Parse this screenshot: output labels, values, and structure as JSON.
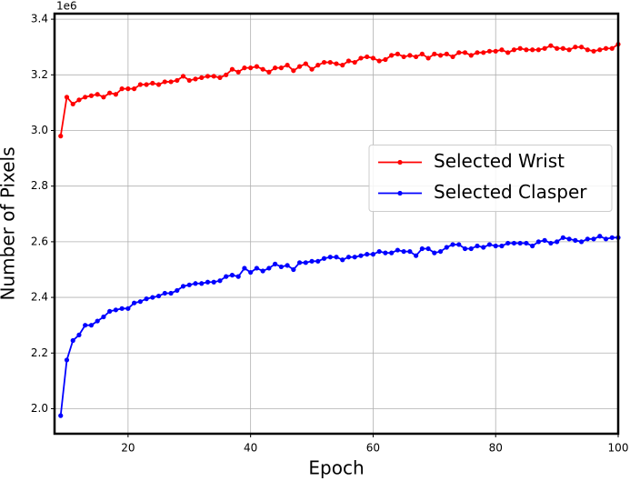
{
  "chart_data": {
    "type": "line",
    "x_label": "Epoch",
    "y_label": "Number of Pixels",
    "y_offset_label": "1e6",
    "x": [
      9,
      10,
      11,
      12,
      13,
      14,
      15,
      16,
      17,
      18,
      19,
      20,
      21,
      22,
      23,
      24,
      25,
      26,
      27,
      28,
      29,
      30,
      31,
      32,
      33,
      34,
      35,
      36,
      37,
      38,
      39,
      40,
      41,
      42,
      43,
      44,
      45,
      46,
      47,
      48,
      49,
      50,
      51,
      52,
      53,
      54,
      55,
      56,
      57,
      58,
      59,
      60,
      61,
      62,
      63,
      64,
      65,
      66,
      67,
      68,
      69,
      70,
      71,
      72,
      73,
      74,
      75,
      76,
      77,
      78,
      79,
      80,
      81,
      82,
      83,
      84,
      85,
      86,
      87,
      88,
      89,
      90,
      91,
      92,
      93,
      94,
      95,
      96,
      97,
      98,
      99,
      100
    ],
    "series": [
      {
        "name": "Selected Wrist",
        "color": "#ff0000",
        "values": [
          2.98,
          3.12,
          3.095,
          3.11,
          3.12,
          3.125,
          3.13,
          3.12,
          3.135,
          3.13,
          3.15,
          3.15,
          3.15,
          3.165,
          3.165,
          3.17,
          3.165,
          3.175,
          3.175,
          3.18,
          3.195,
          3.18,
          3.185,
          3.19,
          3.195,
          3.195,
          3.19,
          3.2,
          3.22,
          3.21,
          3.225,
          3.225,
          3.23,
          3.22,
          3.21,
          3.225,
          3.225,
          3.235,
          3.215,
          3.23,
          3.24,
          3.22,
          3.235,
          3.245,
          3.245,
          3.24,
          3.235,
          3.25,
          3.245,
          3.26,
          3.265,
          3.26,
          3.25,
          3.255,
          3.27,
          3.275,
          3.265,
          3.27,
          3.265,
          3.275,
          3.26,
          3.275,
          3.27,
          3.275,
          3.265,
          3.28,
          3.28,
          3.27,
          3.28,
          3.28,
          3.285,
          3.285,
          3.29,
          3.28,
          3.29,
          3.295,
          3.29,
          3.29,
          3.29,
          3.295,
          3.305,
          3.295,
          3.295,
          3.29,
          3.3,
          3.3,
          3.29,
          3.285,
          3.29,
          3.295,
          3.295,
          3.31
        ]
      },
      {
        "name": "Selected Clasper",
        "color": "#0000ff",
        "values": [
          1.975,
          2.175,
          2.245,
          2.265,
          2.3,
          2.3,
          2.315,
          2.33,
          2.35,
          2.355,
          2.36,
          2.36,
          2.38,
          2.385,
          2.395,
          2.4,
          2.405,
          2.415,
          2.415,
          2.425,
          2.44,
          2.445,
          2.45,
          2.45,
          2.455,
          2.455,
          2.46,
          2.475,
          2.48,
          2.475,
          2.505,
          2.49,
          2.505,
          2.495,
          2.505,
          2.52,
          2.51,
          2.515,
          2.5,
          2.525,
          2.525,
          2.53,
          2.53,
          2.54,
          2.545,
          2.545,
          2.535,
          2.545,
          2.545,
          2.55,
          2.555,
          2.555,
          2.565,
          2.56,
          2.56,
          2.57,
          2.565,
          2.565,
          2.55,
          2.575,
          2.575,
          2.56,
          2.565,
          2.58,
          2.59,
          2.59,
          2.575,
          2.575,
          2.585,
          2.58,
          2.59,
          2.585,
          2.585,
          2.595,
          2.595,
          2.595,
          2.595,
          2.585,
          2.6,
          2.605,
          2.595,
          2.6,
          2.615,
          2.61,
          2.605,
          2.6,
          2.61,
          2.61,
          2.62,
          2.61,
          2.615,
          2.615
        ]
      }
    ],
    "xlim": [
      8,
      100
    ],
    "xticks": [
      20,
      40,
      60,
      80,
      100
    ],
    "ylim": [
      1.91,
      3.42
    ],
    "yticks": [
      {
        "value": 2.0,
        "label": "2.0"
      },
      {
        "value": 2.2,
        "label": "2.2"
      },
      {
        "value": 2.4,
        "label": "2.4"
      },
      {
        "value": 2.6,
        "label": "2.6"
      },
      {
        "value": 2.8,
        "label": "2.8"
      },
      {
        "value": 3.0,
        "label": "3.0"
      },
      {
        "value": 3.2,
        "label": "3.2"
      },
      {
        "value": 3.4,
        "label": "3.4"
      }
    ],
    "grid": true,
    "legend": "center right"
  }
}
